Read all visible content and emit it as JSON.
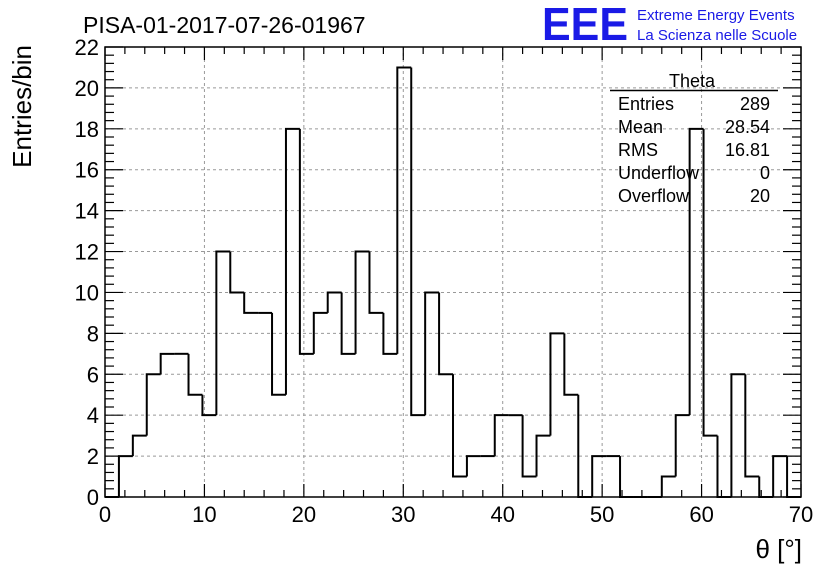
{
  "chart_data": {
    "type": "bar",
    "title": "PISA-01-2017-07-26-01967",
    "xlabel": "θ [°]",
    "ylabel": "Entries/bin",
    "xlim": [
      0,
      70
    ],
    "ylim": [
      0,
      22
    ],
    "x_ticks": [
      0,
      10,
      20,
      30,
      40,
      50,
      60,
      70
    ],
    "y_ticks": [
      0,
      2,
      4,
      6,
      8,
      10,
      12,
      14,
      16,
      18,
      20,
      22
    ],
    "grid": true,
    "bin_width": 1.4,
    "bin_edges_start": 0,
    "values": [
      0,
      2,
      3,
      6,
      7,
      7,
      5,
      4,
      12,
      10,
      9,
      9,
      5,
      18,
      7,
      9,
      10,
      7,
      12,
      9,
      7,
      21,
      4,
      10,
      6,
      1,
      2,
      2,
      4,
      4,
      1,
      3,
      8,
      5,
      0,
      2,
      2,
      0,
      0,
      0,
      1,
      4,
      18,
      3,
      0,
      6,
      1,
      0,
      2,
      0
    ]
  },
  "stats": {
    "title": "Theta",
    "rows": [
      {
        "label": "Entries",
        "value": "289"
      },
      {
        "label": "Mean",
        "value": "28.54"
      },
      {
        "label": "RMS",
        "value": "16.81"
      },
      {
        "label": "Underflow",
        "value": "0"
      },
      {
        "label": "Overflow",
        "value": "20"
      }
    ]
  },
  "logo": {
    "mark": "EEE",
    "line1": "Extreme Energy Events",
    "line2": "La Scienza nelle Scuole"
  }
}
